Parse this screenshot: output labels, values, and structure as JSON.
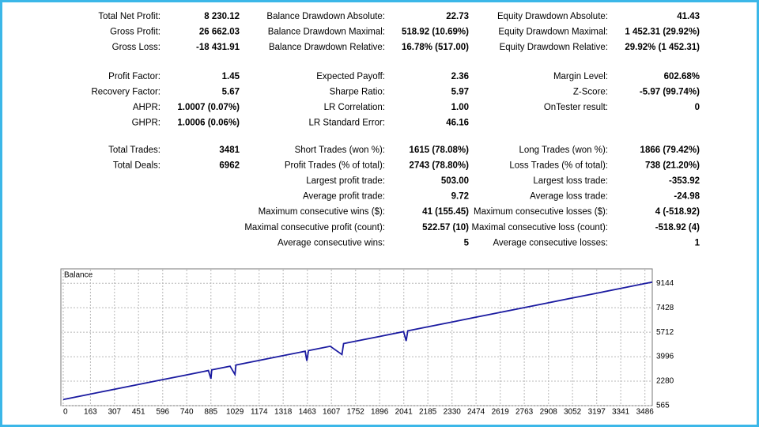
{
  "report": {
    "sections": [
      {
        "columns": [
          [
            [
              "Total Net Profit:",
              "8 230.12"
            ],
            [
              "Gross Profit:",
              "26 662.03"
            ],
            [
              "Gross Loss:",
              "-18 431.91"
            ]
          ],
          [
            [
              "Balance Drawdown Absolute:",
              "22.73"
            ],
            [
              "Balance Drawdown Maximal:",
              "518.92 (10.69%)"
            ],
            [
              "Balance Drawdown Relative:",
              "16.78% (517.00)"
            ]
          ],
          [
            [
              "Equity Drawdown Absolute:",
              "41.43"
            ],
            [
              "Equity Drawdown Maximal:",
              "1 452.31 (29.92%)"
            ],
            [
              "Equity Drawdown Relative:",
              "29.92% (1 452.31)"
            ]
          ]
        ]
      },
      {
        "columns": [
          [
            [
              "Profit Factor:",
              "1.45"
            ],
            [
              "Recovery Factor:",
              "5.67"
            ],
            [
              "AHPR:",
              "1.0007 (0.07%)"
            ],
            [
              "GHPR:",
              "1.0006 (0.06%)"
            ]
          ],
          [
            [
              "Expected Payoff:",
              "2.36"
            ],
            [
              "Sharpe Ratio:",
              "5.97"
            ],
            [
              "LR Correlation:",
              "1.00"
            ],
            [
              "LR Standard Error:",
              "46.16"
            ]
          ],
          [
            [
              "Margin Level:",
              "602.68%"
            ],
            [
              "Z-Score:",
              "-5.97 (99.74%)"
            ],
            [
              "OnTester result:",
              "0"
            ]
          ]
        ]
      },
      {
        "columns": [
          [
            [
              "Total Trades:",
              "3481"
            ],
            [
              "Total Deals:",
              "6962"
            ]
          ],
          [
            [
              "Short Trades (won %):",
              "1615 (78.08%)"
            ],
            [
              "Profit Trades (% of total):",
              "2743 (78.80%)"
            ],
            [
              "Largest profit trade:",
              "503.00"
            ],
            [
              "Average profit trade:",
              "9.72"
            ],
            [
              "Maximum consecutive wins ($):",
              "41 (155.45)"
            ],
            [
              "Maximal consecutive profit (count):",
              "522.57 (10)"
            ],
            [
              "Average consecutive wins:",
              "5"
            ]
          ],
          [
            [
              "Long Trades (won %):",
              "1866 (79.42%)"
            ],
            [
              "Loss Trades (% of total):",
              "738 (21.20%)"
            ],
            [
              "Largest loss trade:",
              "-353.92"
            ],
            [
              "Average loss trade:",
              "-24.98"
            ],
            [
              "Maximum consecutive losses ($):",
              "4 (-518.92)"
            ],
            [
              "Maximal consecutive loss (count):",
              "-518.92 (4)"
            ],
            [
              "Average consecutive losses:",
              "1"
            ]
          ]
        ]
      }
    ]
  },
  "chart_data": {
    "type": "line",
    "title": "Balance",
    "color": "#1a1aa0",
    "grid": true,
    "x": [
      0,
      145,
      290,
      435,
      580,
      725,
      870,
      885,
      890,
      1000,
      1029,
      1035,
      1160,
      1305,
      1450,
      1460,
      1470,
      1600,
      1670,
      1680,
      1740,
      1890,
      2040,
      2055,
      2065,
      2180,
      2330,
      2470,
      2620,
      2760,
      2900,
      3050,
      3190,
      3340,
      3481,
      3530
    ],
    "values": [
      1000,
      1338,
      1676,
      2014,
      2351,
      2689,
      3027,
      2450,
      3074,
      3330,
      2750,
      3412,
      3703,
      4041,
      4379,
      3700,
      4425,
      4728,
      4150,
      4914,
      5054,
      5404,
      5753,
      5100,
      5811,
      6079,
      6429,
      6755,
      7105,
      7431,
      7757,
      8107,
      8433,
      8782,
      9111,
      9225
    ],
    "xlim": [
      0,
      3530
    ],
    "ylim": [
      565,
      9600
    ],
    "xticks": [
      0,
      163,
      307,
      451,
      596,
      740,
      885,
      1029,
      1174,
      1318,
      1463,
      1607,
      1752,
      1896,
      2041,
      2185,
      2330,
      2474,
      2619,
      2763,
      2908,
      3052,
      3197,
      3341,
      3486
    ],
    "yticks": [
      565,
      2280,
      3996,
      5712,
      7428,
      9144
    ]
  }
}
